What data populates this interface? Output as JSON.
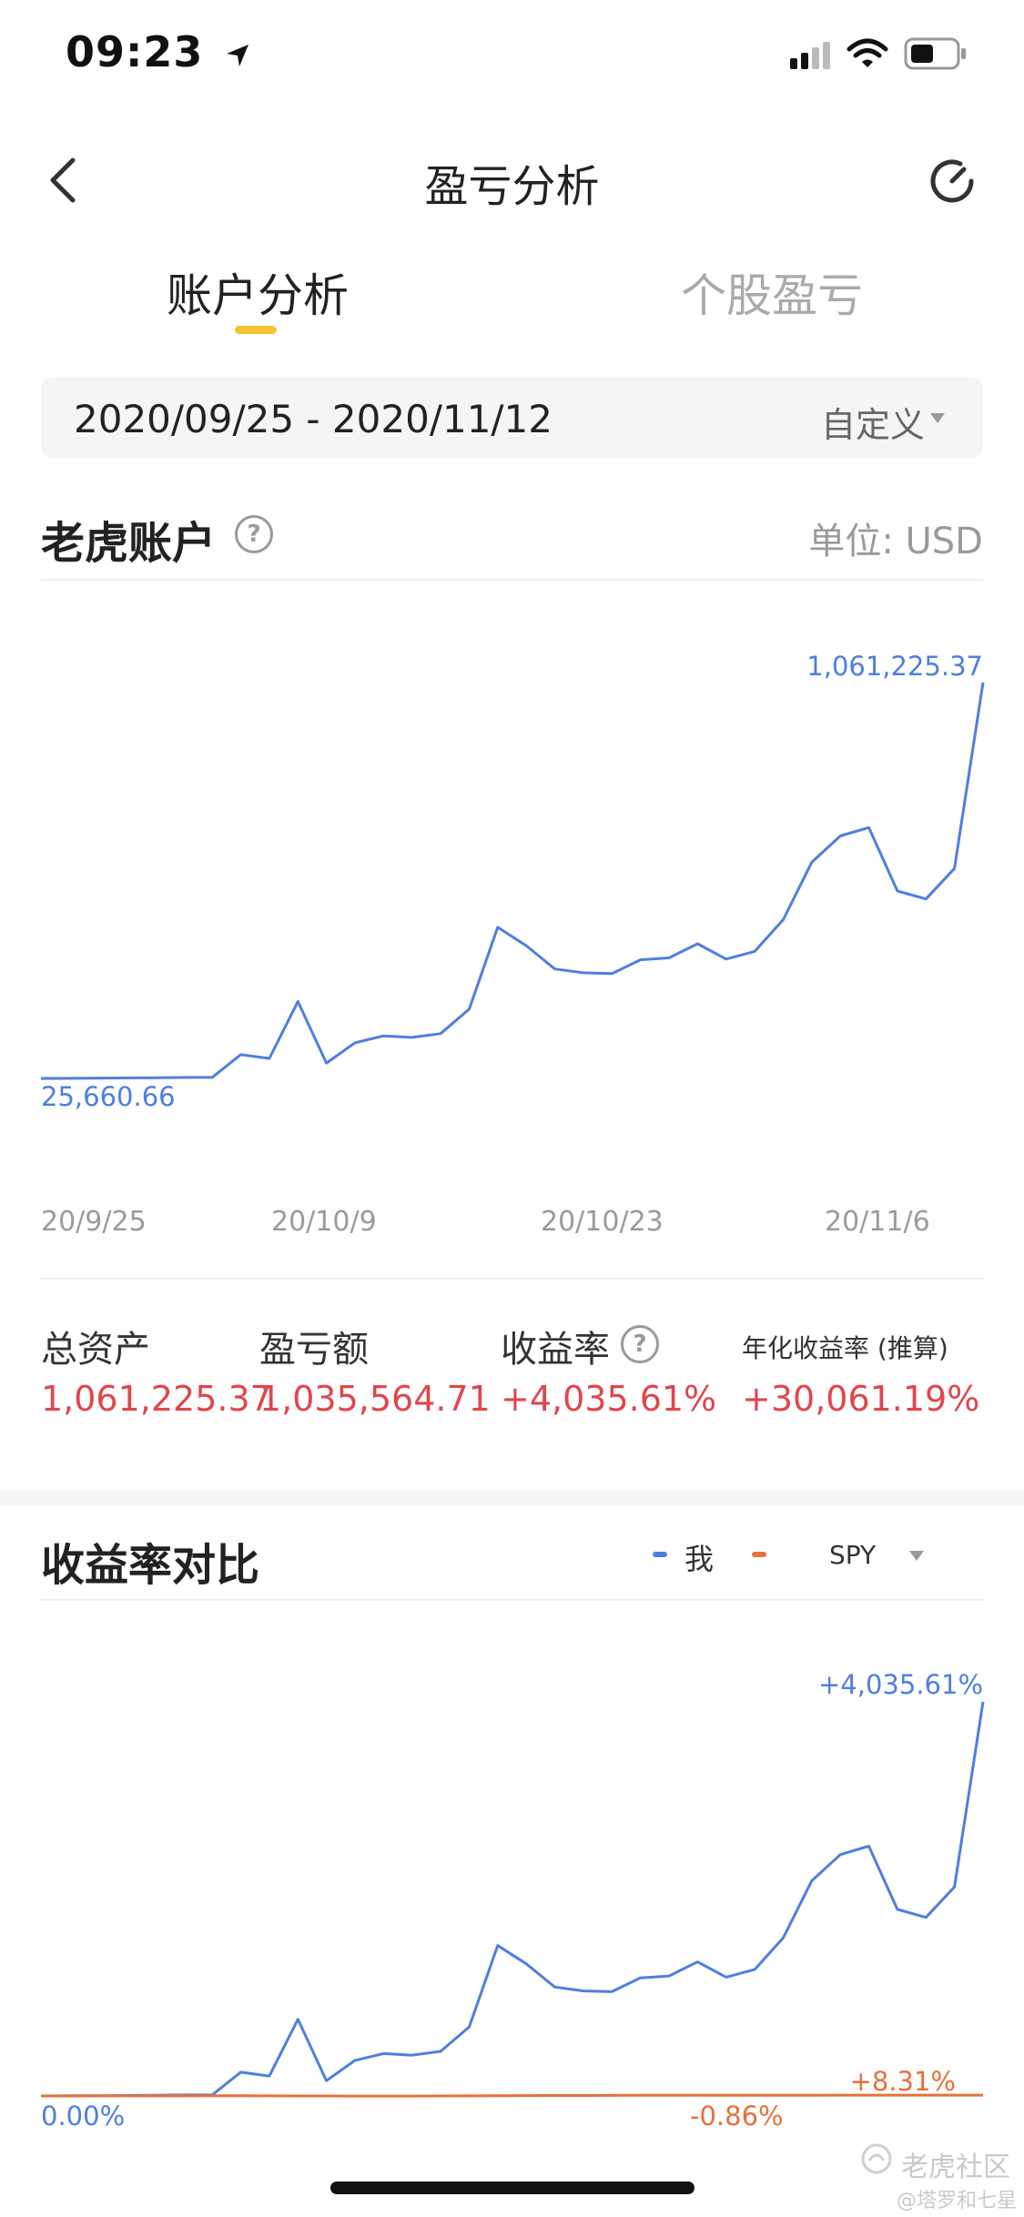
{
  "status_bar": {
    "time": "09:23"
  },
  "nav": {
    "title": "盈亏分析"
  },
  "tabs": [
    {
      "label": "账户分析",
      "active": true
    },
    {
      "label": "个股盈亏",
      "active": false
    }
  ],
  "date_filter": {
    "range": "2020/09/25 - 2020/11/12",
    "mode": "自定义"
  },
  "account": {
    "title": "老虎账户",
    "unit": "单位: USD"
  },
  "colors": {
    "me": "#4f7ee0",
    "spy": "#e8703a",
    "positive": "#e0464b",
    "tab_indicator": "#f2c330"
  },
  "chart_data": [
    {
      "type": "line",
      "title": "",
      "x_ticks": [
        "20/9/25",
        "20/10/9",
        "20/10/23",
        "20/11/6"
      ],
      "series": [
        {
          "values": [
            25660.66,
            26000,
            26500,
            27000,
            27500,
            28200,
            28500,
            88000,
            78000,
            227000,
            66000,
            119000,
            137000,
            133000,
            143000,
            207000,
            421000,
            373000,
            312000,
            302000,
            300000,
            336000,
            341000,
            378000,
            338000,
            358000,
            441000,
            591000,
            660000,
            682000,
            516000,
            495000,
            575000,
            1061225.37
          ]
        }
      ],
      "start_label": "25,660.66",
      "end_label": "1,061,225.37",
      "grid": false,
      "legend": "none"
    },
    {
      "type": "line",
      "title": "收益率对比",
      "series": [
        {
          "name": "我",
          "values": [
            0,
            2,
            3,
            5,
            7,
            10,
            11,
            243,
            204,
            785,
            157,
            364,
            434,
            418,
            457,
            707,
            1541,
            1353,
            1116,
            1076,
            1068,
            1210,
            1228,
            1373,
            1217,
            1295,
            1619,
            2203,
            2472,
            2558,
            1911,
            1829,
            2141,
            4035.61
          ]
        },
        {
          "name": "SPY",
          "values": [
            0,
            0.3,
            0.8,
            1.0,
            0.6,
            0.9,
            1.5,
            2.1,
            1.2,
            0.4,
            -0.2,
            -0.5,
            -0.86,
            -0.6,
            0.2,
            1.1,
            2.4,
            3.5,
            4.2,
            5.0,
            5.6,
            6.3,
            6.9,
            7.2,
            7.5,
            7.8,
            7.6,
            7.9,
            8.1,
            8.0,
            8.2,
            8.3,
            8.2,
            8.31
          ]
        }
      ],
      "me_end_label": "+4,035.61%",
      "spy_end_label": "+8.31%",
      "start_label": "0.00%",
      "spy_min_label": "-0.86%",
      "legend": "top-right"
    }
  ],
  "stats": [
    {
      "label": "总资产",
      "value": "1,061,225.37"
    },
    {
      "label": "盈亏额",
      "value": "1,035,564.71"
    },
    {
      "label": "收益率",
      "value": "+4,035.61%"
    },
    {
      "label": "年化收益率 (推算)",
      "value": "+30,061.19%"
    }
  ],
  "compare": {
    "title": "收益率对比",
    "legend_me": "我",
    "benchmark": "SPY"
  },
  "watermark": {
    "main": "老虎社区",
    "sub": "@塔罗和七星"
  }
}
